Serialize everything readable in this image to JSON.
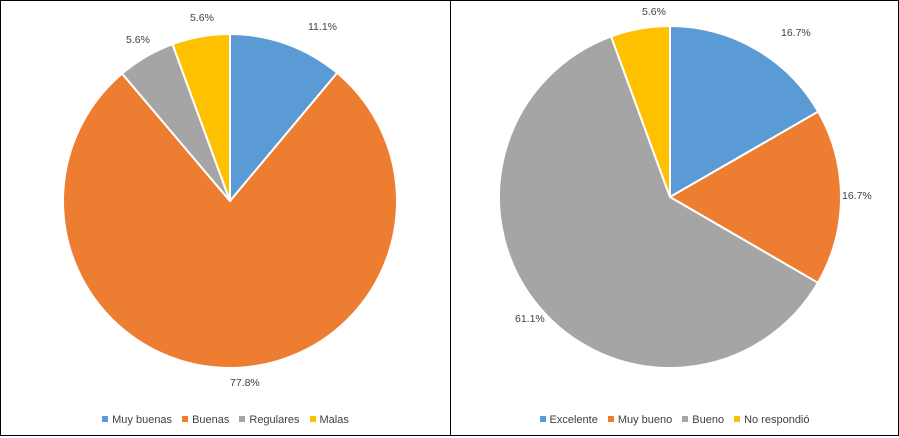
{
  "chart_data": [
    {
      "type": "pie",
      "categories": [
        "Muy buenas",
        "Buenas",
        "Regulares",
        "Malas"
      ],
      "values": [
        11.1,
        77.8,
        5.6,
        5.6
      ],
      "value_labels": [
        "11.1%",
        "77.8%",
        "5.6%",
        "5.6%"
      ],
      "colors": [
        "#5b9bd5",
        "#ed7d31",
        "#a5a5a5",
        "#ffc000"
      ],
      "legend_position": "bottom"
    },
    {
      "type": "pie",
      "categories": [
        "Excelente",
        "Muy bueno",
        "Bueno",
        "No respondió"
      ],
      "values": [
        16.7,
        16.7,
        61.1,
        5.6
      ],
      "value_labels": [
        "16.7%",
        "16.7%",
        "61.1%",
        "5.6%"
      ],
      "colors": [
        "#5b9bd5",
        "#ed7d31",
        "#a5a5a5",
        "#ffc000"
      ],
      "legend_position": "bottom"
    }
  ]
}
